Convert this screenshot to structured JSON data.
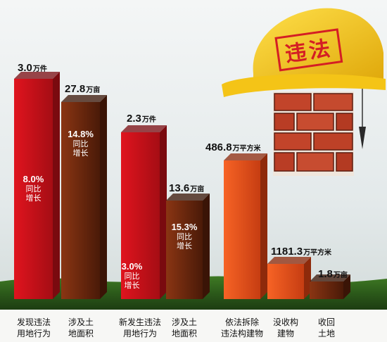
{
  "chart_data": {
    "type": "bar",
    "categories": [
      "发现违法\n用地行为",
      "涉及土\n地面积",
      "新发生违法\n用地行为",
      "涉及土\n地面积",
      "依法拆除\n违法构建物",
      "没收构\n建物",
      "收回\n土地"
    ],
    "values": [
      3.0,
      27.8,
      2.3,
      13.6,
      486.8,
      1181.3,
      1.8
    ],
    "value_texts": [
      "3.0",
      "27.8",
      "2.3",
      "13.6",
      "486.8",
      "1181.3",
      "1.8"
    ],
    "units": [
      "万件",
      "万亩",
      "万件",
      "万亩",
      "万平方米",
      "万平方米",
      "万亩"
    ],
    "growth": [
      {
        "percent": "8.0%",
        "text": "同比\n增长"
      },
      {
        "percent": "14.8%",
        "text": "同比\n增长"
      },
      null,
      {
        "percent": "15.3%",
        "text": "同比\n增长"
      },
      null,
      null,
      null
    ],
    "new_growth": {
      "percent": "3.0%",
      "text": "同比\n增长"
    },
    "title": "",
    "xlabel": "",
    "ylabel": "",
    "grid": false,
    "legend": "none"
  },
  "helmet": {
    "stamp_text": "违法"
  },
  "colors": {
    "red": "#d9121b",
    "brown": "#7a2f10",
    "orange": "#f05a1e",
    "sky": "#dfe6e8",
    "grass": "#4d8a2a",
    "helmet": "#f2c319"
  }
}
